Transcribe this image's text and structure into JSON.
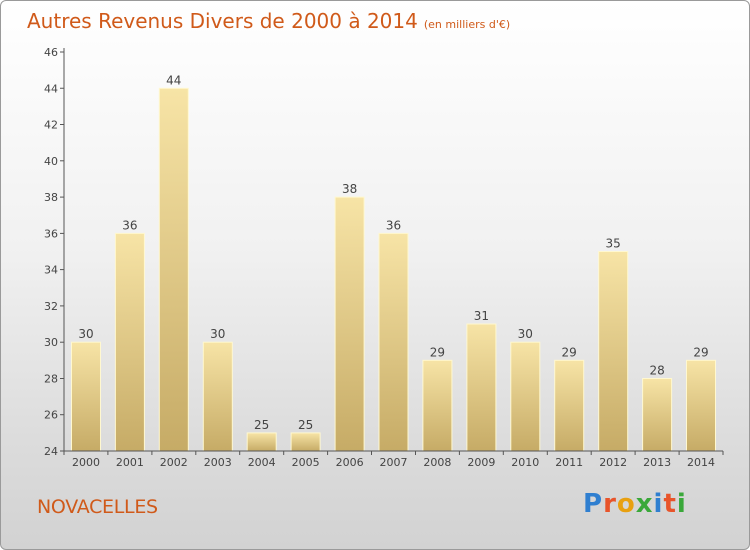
{
  "title": "Autres Revenus Divers de 2000 à 2014",
  "subtitle": "(en milliers d'€)",
  "location": "NOVACELLES",
  "brand": {
    "text": "Proxiti",
    "letter_colors": [
      "#2f7fd0",
      "#e8542a",
      "#e8a010",
      "#3aa83a",
      "#2f7fd0",
      "#e8542a",
      "#3aa83a"
    ]
  },
  "colors": {
    "bar_top": "#f7e4a6",
    "bar_bottom": "#c6ab66",
    "bar_outline": "#fff8d0",
    "axis": "#555555",
    "text": "#444444"
  },
  "chart_data": {
    "type": "bar",
    "categories": [
      "2000",
      "2001",
      "2002",
      "2003",
      "2004",
      "2005",
      "2006",
      "2007",
      "2008",
      "2009",
      "2010",
      "2011",
      "2012",
      "2013",
      "2014"
    ],
    "values": [
      30,
      36,
      44,
      30,
      25,
      25,
      38,
      36,
      29,
      31,
      30,
      29,
      35,
      28,
      29
    ],
    "ylim": [
      24,
      46
    ],
    "yticks": [
      24,
      26,
      28,
      30,
      32,
      34,
      36,
      38,
      40,
      42,
      44,
      46
    ],
    "title": "Autres Revenus Divers de 2000 à 2014",
    "xlabel": "",
    "ylabel": "",
    "grid": false,
    "legend": "none"
  }
}
